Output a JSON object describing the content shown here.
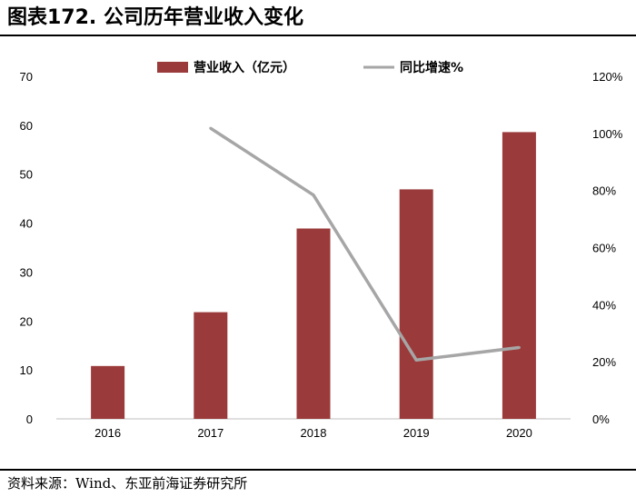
{
  "header": {
    "title": "图表172. 公司历年营业收入变化"
  },
  "footer": {
    "source": "资料来源：Wind、东亚前海证券研究所"
  },
  "colors": {
    "bar": "#9B3A3A",
    "line": "#A6A6A6",
    "axis": "#BFBFBF"
  },
  "chart_data": {
    "type": "bar",
    "categories": [
      "2016",
      "2017",
      "2018",
      "2019",
      "2020"
    ],
    "series": [
      {
        "name": "营业收入（亿元）",
        "type": "bar",
        "axis": "left",
        "values": [
          10.8,
          21.8,
          38.9,
          46.9,
          58.6
        ]
      },
      {
        "name": "同比增速%",
        "type": "line",
        "axis": "right",
        "values": [
          null,
          101.8,
          78.4,
          20.6,
          25.0
        ]
      }
    ],
    "y_left": {
      "min": 0,
      "max": 70,
      "ticks": [
        "0",
        "10",
        "20",
        "30",
        "40",
        "50",
        "60",
        "70"
      ]
    },
    "y_right": {
      "min": 0,
      "max": 120,
      "ticks": [
        "0%",
        "20%",
        "40%",
        "60%",
        "80%",
        "100%",
        "120%"
      ]
    },
    "legend_position": "top-center",
    "grid": false
  }
}
